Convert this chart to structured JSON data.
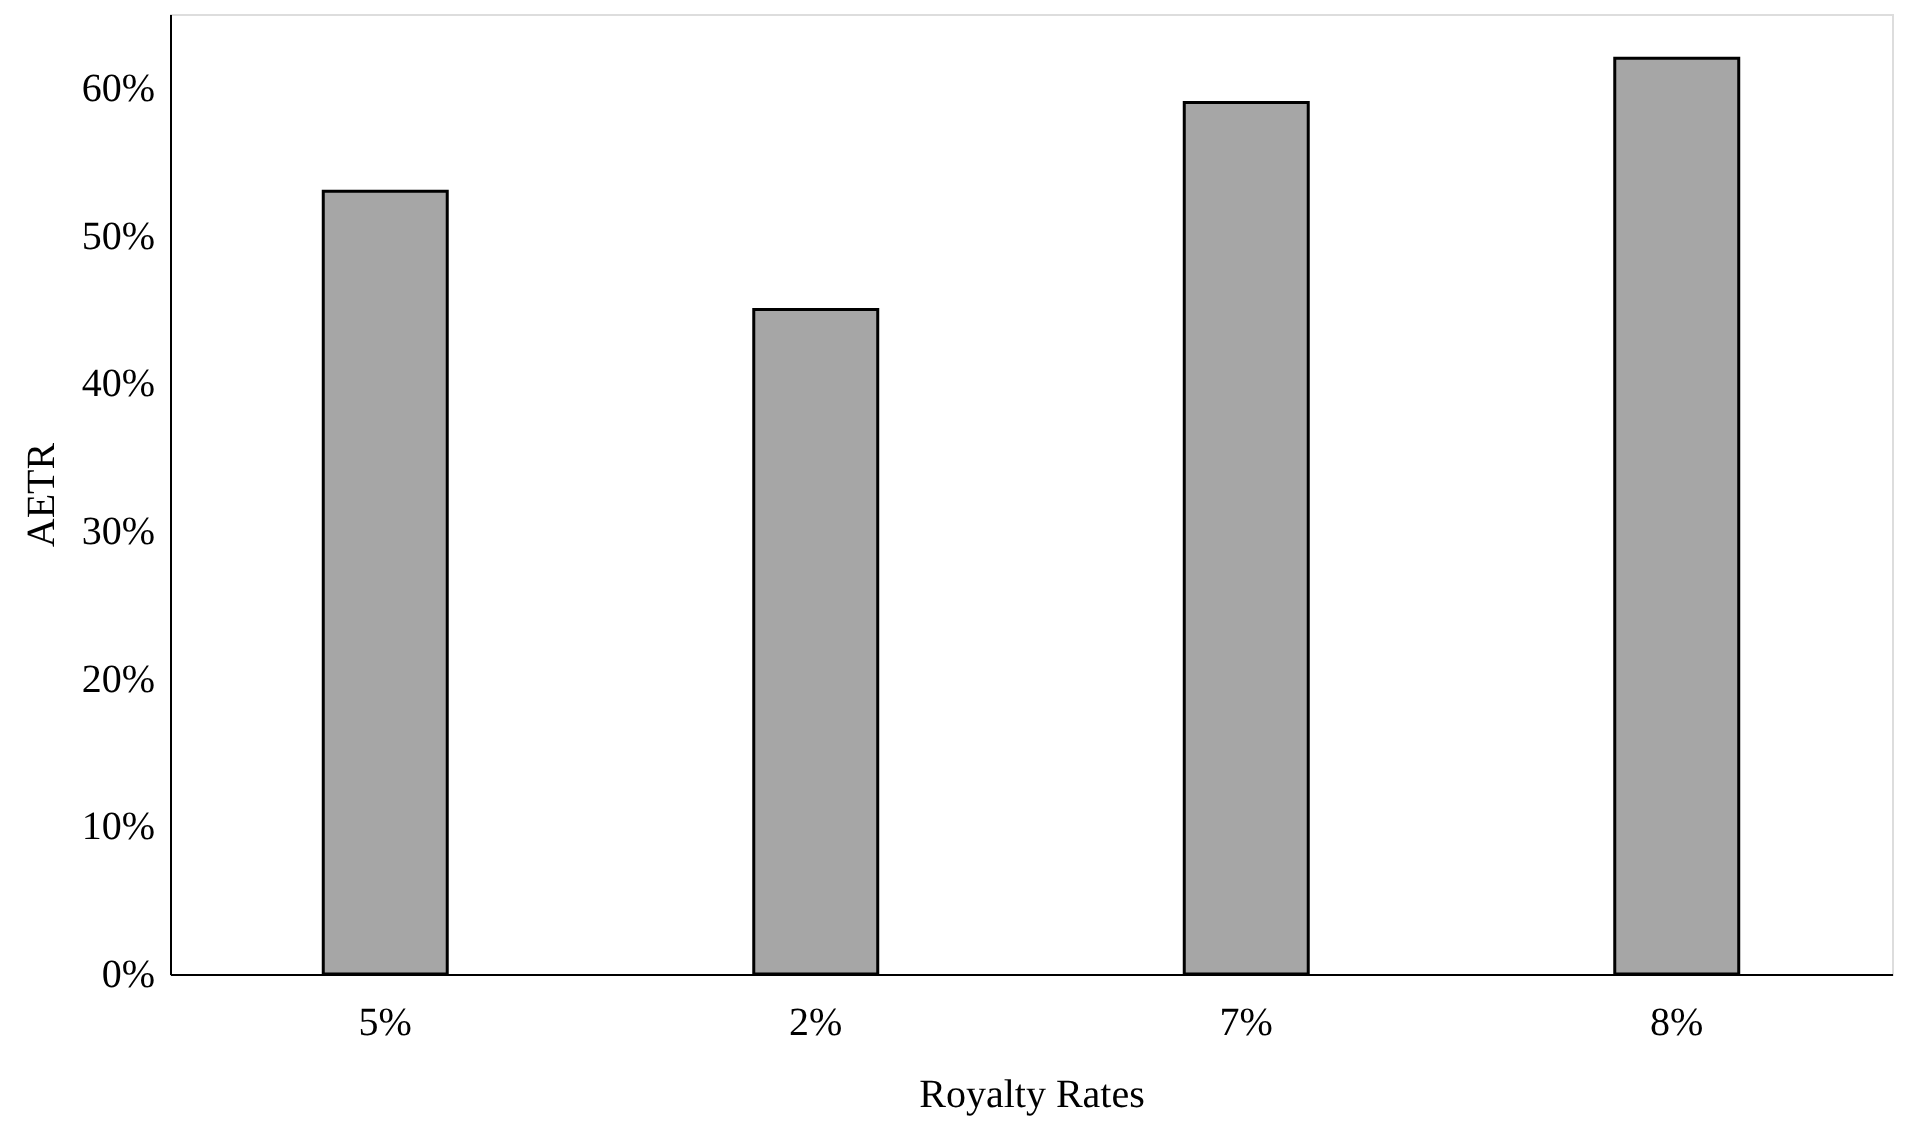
{
  "chart_data": {
    "type": "bar",
    "xlabel": "Royalty Rates",
    "ylabel": "AETR",
    "categories": [
      "5%",
      "2%",
      "7%",
      "8%"
    ],
    "values": [
      53,
      45,
      59,
      62
    ],
    "color": "#a6a6a6",
    "ylim": [
      0,
      65
    ],
    "yticks": [
      {
        "value": 0,
        "label": "0%"
      },
      {
        "value": 10,
        "label": "10%"
      },
      {
        "value": 20,
        "label": "20%"
      },
      {
        "value": 30,
        "label": "30%"
      },
      {
        "value": 40,
        "label": "40%"
      },
      {
        "value": 50,
        "label": "50%"
      },
      {
        "value": 60,
        "label": "60%"
      }
    ],
    "grid": false
  }
}
